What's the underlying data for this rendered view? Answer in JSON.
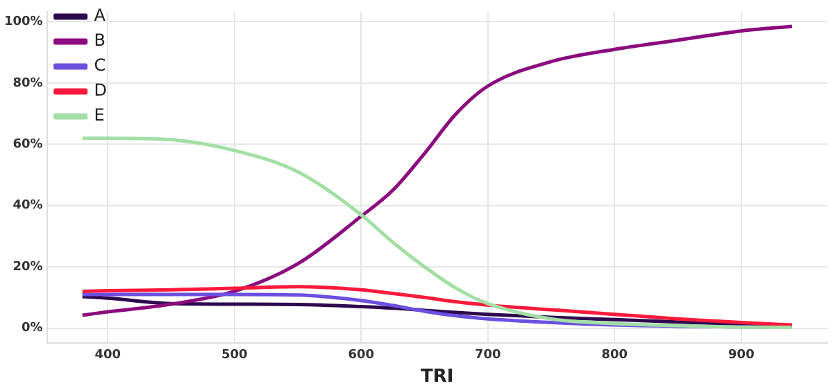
{
  "chart_data": {
    "type": "line",
    "xlabel": "TRI",
    "x": [
      380,
      400,
      450,
      500,
      550,
      600,
      625,
      650,
      675,
      700,
      750,
      800,
      850,
      900,
      940
    ],
    "series": [
      {
        "name": "A",
        "color": "#2d0a4e",
        "values": [
          10.3,
          9.8,
          8,
          7.8,
          7.7,
          7,
          6.5,
          5.8,
          5.1,
          4.5,
          3.5,
          2.8,
          2,
          1.2,
          0.8
        ]
      },
      {
        "name": "B",
        "color": "#8b0a7e",
        "values": [
          4.2,
          5.3,
          7.8,
          12,
          21,
          36.5,
          45,
          57,
          70,
          79,
          87,
          91,
          94,
          97,
          98.5
        ]
      },
      {
        "name": "C",
        "color": "#6a4fe0",
        "values": [
          11,
          11,
          11,
          11,
          10.8,
          9,
          7.4,
          5.5,
          4,
          3,
          1.8,
          1,
          0.6,
          0.4,
          0.3
        ]
      },
      {
        "name": "D",
        "color": "#ff1a3c",
        "values": [
          12,
          12.2,
          12.5,
          13,
          13.5,
          12.5,
          11.3,
          10,
          8.6,
          7.5,
          6,
          4.5,
          3,
          1.8,
          1
        ]
      },
      {
        "name": "E",
        "color": "#a3dfa5",
        "values": [
          62,
          62,
          61.5,
          58,
          51,
          37,
          28,
          20,
          13,
          8,
          3,
          1.5,
          0.8,
          0.3,
          0.2
        ]
      }
    ],
    "xlim": [
      352,
      968
    ],
    "xticks": [
      400,
      500,
      600,
      700,
      800,
      900
    ],
    "ylim": [
      -4.9,
      103.3
    ],
    "yticks": [
      {
        "value": 0,
        "label": "0%"
      },
      {
        "value": 20,
        "label": "20%"
      },
      {
        "value": 40,
        "label": "40%"
      },
      {
        "value": 60,
        "label": "60%"
      },
      {
        "value": 80,
        "label": "80%"
      },
      {
        "value": 100,
        "label": "100%"
      }
    ],
    "grid": true,
    "legend": "top left"
  }
}
